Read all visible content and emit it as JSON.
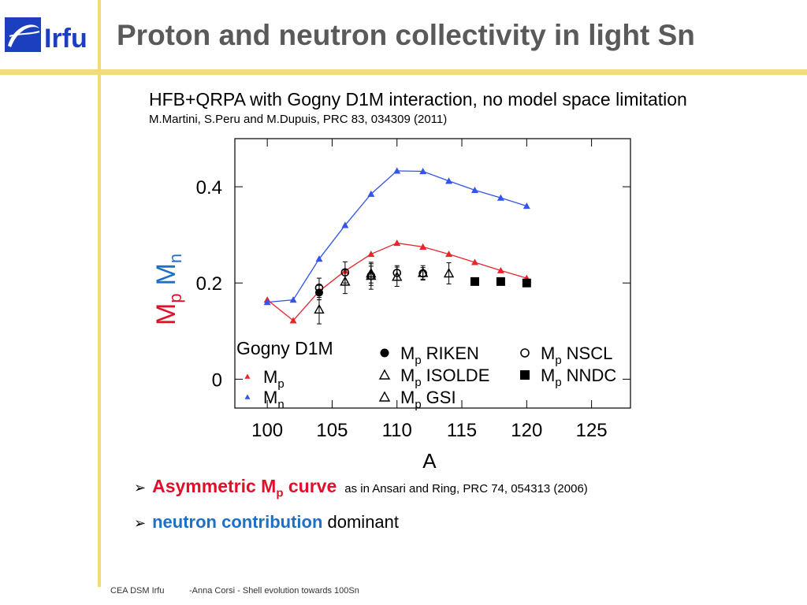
{
  "header": {
    "title": "Proton and neutron collectivity in light Sn",
    "logo_text": "Irfu"
  },
  "subtitle": "HFB+QRPA with Gogny D1M interaction, no model space limitation",
  "reference": "M.Martini, S.Peru and M.Dupuis, PRC 83, 034309 (2011)",
  "bullets": [
    {
      "arrow": "➢",
      "highlight": "Asymmetric M",
      "sub": "p",
      "highlight_tail": " curve",
      "rest": "as in Ansari and Ring, PRC 74, 054313 (2006)"
    },
    {
      "arrow": "➢",
      "highlight": "neutron contribution",
      "rest": " dominant"
    }
  ],
  "footer": {
    "left": "CEA DSM Irfu",
    "right": "-Anna Corsi -   Shell evolution towards 100Sn"
  },
  "colors": {
    "accent_line": "#f2dc79",
    "red": "#e0102a",
    "blue": "#1f6fc4",
    "title_gray": "#5a5a5a"
  },
  "chart_data": {
    "type": "scatter",
    "xlabel": "A",
    "ylabel": "M",
    "ylabel_subs": [
      "p",
      "n"
    ],
    "xlim": [
      97.5,
      128
    ],
    "ylim": [
      -0.06,
      0.5
    ],
    "xticks": [
      "100",
      "105",
      "110",
      "115",
      "120",
      "125"
    ],
    "xtick_values": [
      100,
      105,
      110,
      115,
      120,
      125
    ],
    "yticks": [
      "0",
      "0.2",
      "0.4"
    ],
    "ytick_values": [
      0,
      0.2,
      0.4
    ],
    "legend_title": "Gogny D1M",
    "series": [
      {
        "name": "Mp",
        "sub": "p",
        "style": "line-triangle",
        "color": "#e8242c",
        "x": [
          100,
          102,
          104,
          106,
          108,
          110,
          112,
          114,
          116,
          118,
          120
        ],
        "y": [
          0.165,
          0.122,
          0.183,
          0.225,
          0.26,
          0.283,
          0.275,
          0.26,
          0.243,
          0.226,
          0.21
        ]
      },
      {
        "name": "Mn",
        "sub": "n",
        "style": "line-triangle",
        "color": "#3355e8",
        "x": [
          100,
          102,
          104,
          106,
          108,
          110,
          112,
          114,
          116,
          118,
          120
        ],
        "y": [
          0.16,
          0.165,
          0.25,
          0.32,
          0.385,
          0.433,
          0.432,
          0.412,
          0.393,
          0.377,
          0.36
        ]
      },
      {
        "name": "Mp RIKEN",
        "sub": "p",
        "label": "RIKEN",
        "style": "filled-circle",
        "color": "#000000",
        "x": [
          104
        ],
        "y": [
          0.18
        ],
        "err": [
          0.015
        ]
      },
      {
        "name": "Mp NSCL",
        "sub": "p",
        "label": "NSCL",
        "style": "open-circle",
        "color": "#000000",
        "x": [
          104,
          106,
          108,
          110,
          112
        ],
        "y": [
          0.19,
          0.222,
          0.215,
          0.221,
          0.22
        ],
        "err": [
          0.02,
          0.022,
          0.02,
          0.015,
          0.012
        ]
      },
      {
        "name": "Mp ISOLDE",
        "sub": "p",
        "label": "ISOLDE",
        "style": "open-triangle",
        "color": "#000000",
        "x": [
          104,
          106,
          108,
          110,
          112,
          114
        ],
        "y": [
          0.145,
          0.203,
          0.215,
          0.213,
          0.221,
          0.22
        ],
        "err": [
          0.03,
          0.025,
          0.028,
          0.02,
          0.015,
          0.022
        ]
      },
      {
        "name": "Mp GSI",
        "sub": "p",
        "label": "GSI",
        "style": "open-triangle",
        "color": "#000000",
        "x": [
          108
        ],
        "y": [
          0.22
        ],
        "err": [
          0.02
        ]
      },
      {
        "name": "Mp NNDC",
        "sub": "p",
        "label": "NNDC",
        "style": "filled-square",
        "color": "#000000",
        "x": [
          116,
          118,
          120
        ],
        "y": [
          0.203,
          0.203,
          0.2
        ]
      }
    ],
    "legend": [
      {
        "label": "M",
        "sub": "p",
        "series": 0
      },
      {
        "label": "M",
        "sub": "n",
        "series": 1
      },
      {
        "label": "M",
        "sub": "p",
        "suffix": "RIKEN",
        "series": 2
      },
      {
        "label": "M",
        "sub": "p",
        "suffix": "ISOLDE",
        "series": 4
      },
      {
        "label": "M",
        "sub": "p",
        "suffix": "GSI",
        "series": 5
      },
      {
        "label": "M",
        "sub": "p",
        "suffix": "NSCL",
        "series": 3
      },
      {
        "label": "M",
        "sub": "p",
        "suffix": "NNDC",
        "series": 6
      }
    ]
  }
}
